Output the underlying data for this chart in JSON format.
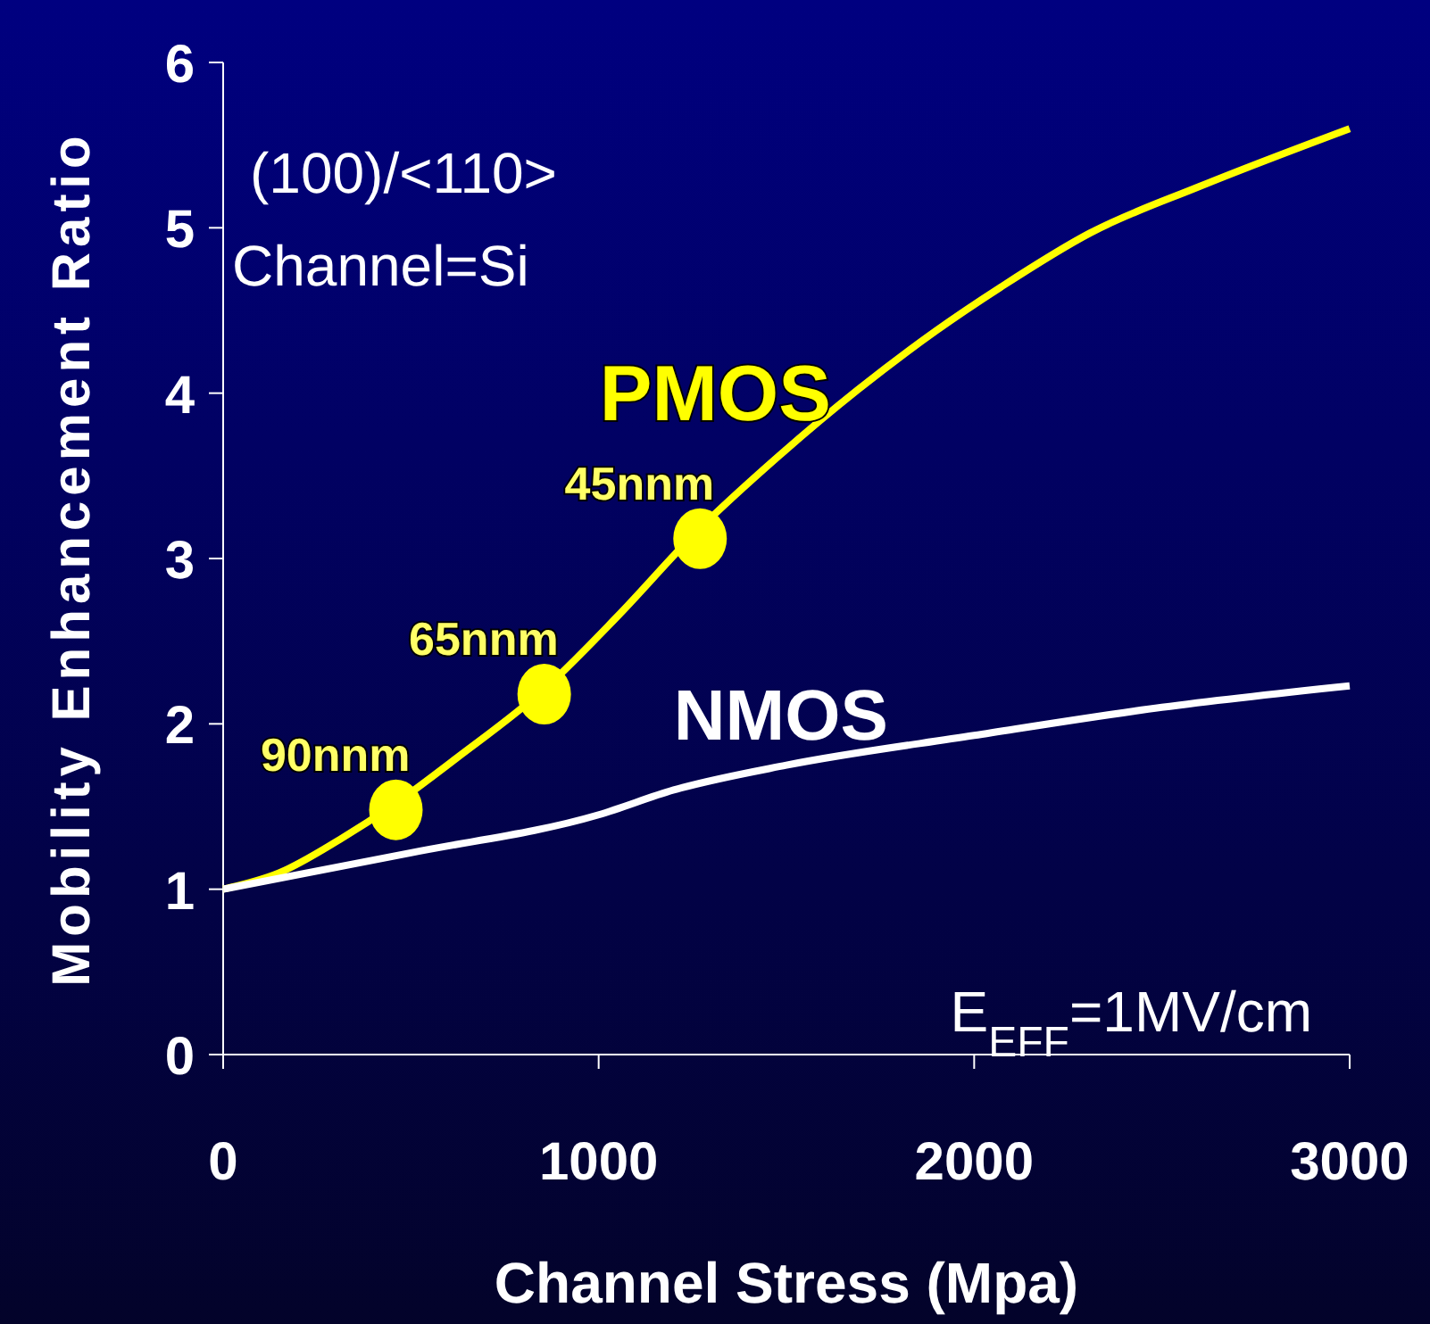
{
  "chart_data": {
    "type": "line",
    "xlabel": "Channel Stress (Mpa)",
    "ylabel": "Mobility Enhancement Ratio",
    "xlim": [
      0,
      3000
    ],
    "xticks": [
      0,
      1000,
      2000,
      3000
    ],
    "ylim": [
      0,
      6
    ],
    "yticks": [
      0,
      1,
      2,
      3,
      4,
      5,
      6
    ],
    "grid": false,
    "marker": "none",
    "series": [
      {
        "name": "PMOS",
        "color": "#ffff00",
        "x": [
          0,
          150,
          310,
          460,
          620,
          860,
          1050,
          1260,
          1480,
          1690,
          1900,
          2070,
          2310,
          2600,
          3000
        ],
        "values": [
          1.0,
          1.1,
          1.3,
          1.52,
          1.79,
          2.22,
          2.65,
          3.16,
          3.62,
          4.02,
          4.38,
          4.64,
          4.97,
          5.25,
          5.6
        ]
      },
      {
        "name": "NMOS",
        "color": "#ffffff",
        "x": [
          0,
          500,
          1000,
          1200,
          1500,
          2000,
          2500,
          3000
        ],
        "values": [
          1.0,
          1.22,
          1.45,
          1.6,
          1.75,
          1.93,
          2.1,
          2.23
        ]
      },
      {
        "type": "scatter",
        "color": "#ffff00",
        "marker": "circle",
        "x": [
          460,
          855,
          1270
        ],
        "values": [
          1.48,
          2.18,
          3.12
        ]
      }
    ],
    "annotations": [
      "(100)/<110>",
      "Channel=Si",
      "E$_{EFF}$=1MV/cm",
      {
        "text": "90nnm",
        "x": 460,
        "y": 1.48
      },
      {
        "text": "65nnm",
        "x": 855,
        "y": 2.18
      },
      {
        "text": "45nnm",
        "x": 1270,
        "y": 3.12
      }
    ]
  }
}
